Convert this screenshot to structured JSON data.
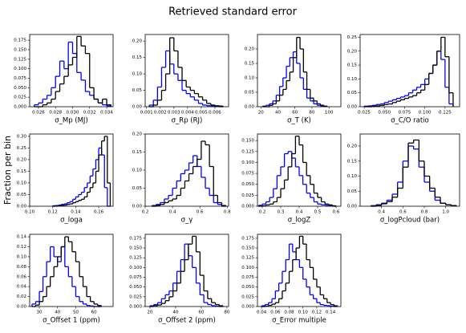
{
  "title": "Retrieved standard error",
  "ylabel": "Fraction per bin",
  "chart_data": [
    {
      "type": "histogram",
      "xlabel": "σ_Mp (MJ)",
      "xlim": [
        0.02497,
        0.03475
      ],
      "ylim": [
        0,
        0.19
      ],
      "xticks": [
        0.026,
        0.028,
        {
          "value": 0.03,
          "label": "0.030"
        },
        0.032,
        0.034
      ],
      "yticks": [
        {
          "value": 0,
          "label": "0.000"
        },
        0.025,
        {
          "value": 0.05,
          "label": "0.050"
        },
        0.075,
        {
          "value": 0.1,
          "label": "0.100"
        },
        0.125,
        {
          "value": 0.15,
          "label": "0.150"
        },
        0.175
      ],
      "bins": [
        0.0255,
        0.026,
        0.0265,
        0.027,
        0.0275,
        0.028,
        0.0285,
        0.029,
        0.0295,
        0.03,
        0.0305,
        0.031,
        0.0315,
        0.032,
        0.0325,
        0.033,
        0.0335,
        0.034,
        0.0345
      ],
      "series": [
        {
          "color": "#0000ff",
          "values": [
            0.005,
            0.01,
            0.02,
            0.03,
            0.05,
            0.08,
            0.12,
            0.1,
            0.17,
            0.14,
            0.09,
            0.07,
            0.04,
            0.03,
            0.02,
            0.01,
            0.005,
            0.002
          ]
        },
        {
          "color": "#000000",
          "values": [
            0,
            0,
            0.005,
            0.01,
            0.02,
            0.04,
            0.06,
            0.08,
            0.11,
            0.13,
            0.185,
            0.16,
            0.14,
            0.05,
            0.02,
            0.01,
            0.02,
            0.005
          ]
        }
      ]
    },
    {
      "type": "histogram",
      "xlabel": "σ_Rp (RJ)",
      "xlim": [
        0.0009,
        0.007
      ],
      "ylim": [
        0,
        0.22
      ],
      "xticks": [
        0.001,
        0.002,
        0.003,
        0.004,
        0.005,
        0.006
      ],
      "yticks": [
        {
          "value": 0,
          "label": "0.00"
        },
        0.05,
        {
          "value": 0.1,
          "label": "0.10"
        },
        0.15,
        {
          "value": 0.2,
          "label": "0.20"
        }
      ],
      "bins": [
        0.0012,
        0.0015,
        0.0018,
        0.0021,
        0.0024,
        0.0027,
        0.003,
        0.0033,
        0.0036,
        0.0039,
        0.0042,
        0.0045,
        0.0048,
        0.0051,
        0.0054,
        0.0057,
        0.006,
        0.0063,
        0.0066
      ],
      "series": [
        {
          "color": "#0000ff",
          "values": [
            0.005,
            0.02,
            0.06,
            0.12,
            0.17,
            0.13,
            0.1,
            0.08,
            0.05,
            0.04,
            0.03,
            0.02,
            0.01,
            0.005,
            0.003,
            0.002,
            0.001,
            0
          ]
        },
        {
          "color": "#000000",
          "values": [
            0,
            0.005,
            0.02,
            0.05,
            0.1,
            0.21,
            0.17,
            0.12,
            0.08,
            0.06,
            0.05,
            0.04,
            0.03,
            0.02,
            0.01,
            0.005,
            0.003,
            0.002
          ]
        }
      ]
    },
    {
      "type": "histogram",
      "xlabel": "σ_T (K)",
      "xlim": [
        16,
        114
      ],
      "ylim": [
        0,
        0.25
      ],
      "xticks": [
        20,
        40,
        60,
        80,
        100
      ],
      "yticks": [
        {
          "value": 0,
          "label": "0.00"
        },
        0.05,
        {
          "value": 0.1,
          "label": "0.10"
        },
        0.15,
        {
          "value": 0.2,
          "label": "0.20"
        }
      ],
      "bins": [
        22,
        26,
        30,
        34,
        38,
        42,
        46,
        50,
        54,
        58,
        62,
        66,
        70,
        74,
        78,
        82,
        86,
        90,
        94,
        98
      ],
      "series": [
        {
          "color": "#0000ff",
          "values": [
            0.002,
            0.005,
            0.01,
            0.02,
            0.04,
            0.07,
            0.1,
            0.14,
            0.17,
            0.19,
            0.15,
            0.1,
            0.06,
            0.03,
            0.02,
            0.01,
            0.005,
            0.002,
            0.001
          ]
        },
        {
          "color": "#000000",
          "values": [
            0,
            0,
            0.005,
            0.01,
            0.02,
            0.04,
            0.06,
            0.09,
            0.12,
            0.17,
            0.24,
            0.2,
            0.12,
            0.06,
            0.03,
            0.02,
            0.01,
            0.005,
            0.002
          ]
        }
      ]
    },
    {
      "type": "histogram",
      "xlabel": "σ_C/O ratio",
      "xlim": [
        0.02,
        0.143
      ],
      "ylim": [
        0,
        0.26
      ],
      "xticks": [
        0.025,
        {
          "value": 0.05,
          "label": "0.050"
        },
        0.075,
        {
          "value": 0.1,
          "label": "0.100"
        },
        0.125
      ],
      "yticks": [
        {
          "value": 0,
          "label": "0.00"
        },
        0.05,
        {
          "value": 0.1,
          "label": "0.10"
        },
        0.15,
        {
          "value": 0.2,
          "label": "0.20"
        },
        0.25
      ],
      "bins": [
        0.025,
        0.03,
        0.035,
        0.04,
        0.045,
        0.05,
        0.055,
        0.06,
        0.065,
        0.07,
        0.075,
        0.08,
        0.085,
        0.09,
        0.095,
        0.1,
        0.105,
        0.11,
        0.115,
        0.12,
        0.125,
        0.13,
        0.135
      ],
      "series": [
        {
          "color": "#0000ff",
          "values": [
            0.002,
            0.003,
            0.005,
            0.008,
            0.01,
            0.015,
            0.02,
            0.025,
            0.03,
            0.035,
            0.04,
            0.05,
            0.06,
            0.07,
            0.08,
            0.1,
            0.12,
            0.15,
            0.2,
            0.17,
            0.07,
            0.01
          ]
        },
        {
          "color": "#000000",
          "values": [
            0,
            0,
            0.002,
            0.003,
            0.005,
            0.008,
            0.01,
            0.015,
            0.02,
            0.025,
            0.03,
            0.035,
            0.04,
            0.05,
            0.06,
            0.08,
            0.12,
            0.15,
            0.2,
            0.25,
            0.18,
            0.05
          ]
        }
      ]
    },
    {
      "type": "histogram",
      "xlabel": "σ_loga",
      "xlim": [
        0.1,
        0.1725
      ],
      "ylim": [
        0,
        0.31
      ],
      "xticks": [
        {
          "value": 0.1,
          "label": "0.10"
        },
        0.12,
        0.14,
        0.16
      ],
      "yticks": [
        {
          "value": 0,
          "label": "0.00"
        },
        0.05,
        {
          "value": 0.1,
          "label": "0.10"
        },
        0.15,
        {
          "value": 0.2,
          "label": "0.20"
        },
        0.25,
        {
          "value": 0.3,
          "label": "0.30"
        }
      ],
      "bins": [
        0.12,
        0.1225,
        0.125,
        0.1275,
        0.13,
        0.1325,
        0.135,
        0.1375,
        0.14,
        0.1425,
        0.145,
        0.1475,
        0.15,
        0.1525,
        0.155,
        0.1575,
        0.16,
        0.1625,
        0.165,
        0.1675,
        0.17
      ],
      "series": [
        {
          "color": "#0000ff",
          "values": [
            0.002,
            0.003,
            0.005,
            0.008,
            0.01,
            0.015,
            0.02,
            0.03,
            0.04,
            0.05,
            0.06,
            0.08,
            0.1,
            0.13,
            0.16,
            0.2,
            0.25,
            0.22,
            0.08,
            0
          ]
        },
        {
          "color": "#000000",
          "values": [
            0,
            0.001,
            0.002,
            0.003,
            0.005,
            0.008,
            0.01,
            0.015,
            0.02,
            0.025,
            0.03,
            0.04,
            0.06,
            0.08,
            0.1,
            0.15,
            0.22,
            0.28,
            0.3,
            0.1
          ]
        }
      ]
    },
    {
      "type": "histogram",
      "xlabel": "σ_γ",
      "xlim": [
        0.2,
        0.81
      ],
      "ylim": [
        0,
        0.2
      ],
      "xticks": [
        0.2,
        0.4,
        0.6,
        0.8
      ],
      "yticks": [
        {
          "value": 0,
          "label": "0.00"
        },
        0.05,
        {
          "value": 0.1,
          "label": "0.10"
        },
        0.15,
        {
          "value": 0.2,
          "label": "0.20"
        }
      ],
      "bins": [
        0.25,
        0.28,
        0.31,
        0.34,
        0.37,
        0.4,
        0.43,
        0.46,
        0.49,
        0.52,
        0.55,
        0.58,
        0.61,
        0.64,
        0.67,
        0.7,
        0.73,
        0.76,
        0.79
      ],
      "series": [
        {
          "color": "#0000ff",
          "values": [
            0.002,
            0.005,
            0.01,
            0.02,
            0.03,
            0.05,
            0.07,
            0.09,
            0.1,
            0.12,
            0.14,
            0.11,
            0.08,
            0.05,
            0.03,
            0.01,
            0.005,
            0
          ]
        },
        {
          "color": "#000000",
          "values": [
            0,
            0.002,
            0.005,
            0.01,
            0.015,
            0.02,
            0.03,
            0.05,
            0.07,
            0.09,
            0.11,
            0.13,
            0.18,
            0.17,
            0.11,
            0.03,
            0.01,
            0.002
          ]
        }
      ]
    },
    {
      "type": "histogram",
      "xlabel": "σ_logZ",
      "xlim": [
        0.174,
        0.626
      ],
      "ylim": [
        0,
        0.165
      ],
      "xticks": [
        0.2,
        0.3,
        0.4,
        0.5,
        0.6
      ],
      "yticks": [
        {
          "value": 0,
          "label": "0.000"
        },
        0.025,
        {
          "value": 0.05,
          "label": "0.050"
        },
        0.075,
        {
          "value": 0.1,
          "label": "0.100"
        },
        0.125,
        {
          "value": 0.15,
          "label": "0.150"
        }
      ],
      "bins": [
        0.18,
        0.2,
        0.22,
        0.24,
        0.26,
        0.28,
        0.3,
        0.32,
        0.34,
        0.36,
        0.38,
        0.4,
        0.42,
        0.44,
        0.46,
        0.48,
        0.5,
        0.52,
        0.54,
        0.56,
        0.58,
        0.6
      ],
      "series": [
        {
          "color": "#0000ff",
          "values": [
            0.002,
            0.005,
            0.01,
            0.02,
            0.04,
            0.07,
            0.09,
            0.12,
            0.125,
            0.11,
            0.09,
            0.07,
            0.05,
            0.03,
            0.02,
            0.01,
            0.005,
            0.003,
            0.002,
            0.001,
            0
          ]
        },
        {
          "color": "#000000",
          "values": [
            0,
            0.001,
            0.003,
            0.005,
            0.01,
            0.02,
            0.04,
            0.06,
            0.09,
            0.12,
            0.16,
            0.14,
            0.1,
            0.07,
            0.05,
            0.03,
            0.02,
            0.01,
            0.005,
            0.003,
            0.001
          ]
        }
      ]
    },
    {
      "type": "histogram",
      "xlabel": "σ_logPcloud (bar)",
      "xlim": [
        0.2,
        1.13
      ],
      "ylim": [
        0,
        0.24
      ],
      "xticks": [
        0.4,
        0.6,
        0.8,
        {
          "value": 1,
          "label": "1.0"
        }
      ],
      "yticks": [
        {
          "value": 0,
          "label": "0.00"
        },
        0.05,
        {
          "value": 0.1,
          "label": "0.10"
        },
        0.15,
        {
          "value": 0.2,
          "label": "0.20"
        }
      ],
      "bins": [
        0.3,
        0.35,
        0.4,
        0.45,
        0.5,
        0.55,
        0.6,
        0.65,
        0.7,
        0.75,
        0.8,
        0.85,
        0.9,
        0.95,
        1,
        1.05,
        1.1
      ],
      "series": [
        {
          "color": "#0000ff",
          "values": [
            0.002,
            0.005,
            0.01,
            0.02,
            0.04,
            0.08,
            0.15,
            0.2,
            0.19,
            0.13,
            0.08,
            0.05,
            0.02,
            0.01,
            0.005,
            0.002
          ]
        },
        {
          "color": "#000000",
          "values": [
            0,
            0.003,
            0.008,
            0.015,
            0.03,
            0.06,
            0.13,
            0.21,
            0.22,
            0.15,
            0.1,
            0.06,
            0.03,
            0.01,
            0.005,
            0.002
          ]
        }
      ]
    },
    {
      "type": "histogram",
      "xlabel": "σ_Offset 1 (ppm)",
      "xlim": [
        24.7,
        70.5
      ],
      "ylim": [
        0,
        0.145
      ],
      "xticks": [
        30,
        40,
        50,
        60
      ],
      "yticks": [
        {
          "value": 0,
          "label": "0.00"
        },
        0.02,
        0.04,
        0.06,
        0.08,
        {
          "value": 0.1,
          "label": "0.10"
        },
        0.12,
        0.14
      ],
      "bins": [
        26,
        28,
        30,
        32,
        34,
        36,
        38,
        40,
        42,
        44,
        46,
        48,
        50,
        52,
        54,
        56,
        58,
        60,
        62,
        64
      ],
      "series": [
        {
          "color": "#0000ff",
          "values": [
            0.005,
            0.01,
            0.03,
            0.06,
            0.09,
            0.12,
            0.1,
            0.09,
            0.12,
            0.08,
            0.06,
            0.04,
            0.02,
            0.01,
            0.005,
            0.002,
            0.001,
            0,
            0
          ]
        },
        {
          "color": "#000000",
          "values": [
            0,
            0.003,
            0.01,
            0.02,
            0.04,
            0.06,
            0.08,
            0.1,
            0.12,
            0.14,
            0.13,
            0.11,
            0.09,
            0.06,
            0.04,
            0.02,
            0.01,
            0.005,
            0.002
          ]
        }
      ]
    },
    {
      "type": "histogram",
      "xlabel": "σ_Offset 2 (ppm)",
      "xlim": [
        16.3,
        81.3
      ],
      "ylim": [
        0,
        0.185
      ],
      "xticks": [
        20,
        40,
        60,
        80
      ],
      "yticks": [
        {
          "value": 0,
          "label": "0.000"
        },
        0.025,
        {
          "value": 0.05,
          "label": "0.050"
        },
        0.075,
        {
          "value": 0.1,
          "label": "0.100"
        },
        0.125,
        {
          "value": 0.15,
          "label": "0.150"
        },
        0.175
      ],
      "bins": [
        20,
        23,
        26,
        29,
        32,
        35,
        38,
        41,
        44,
        47,
        50,
        53,
        56,
        59,
        62,
        65,
        68,
        71,
        74,
        77
      ],
      "series": [
        {
          "color": "#0000ff",
          "values": [
            0.002,
            0.005,
            0.01,
            0.02,
            0.03,
            0.04,
            0.06,
            0.09,
            0.12,
            0.16,
            0.13,
            0.1,
            0.06,
            0.03,
            0.01,
            0.005,
            0.002,
            0.001,
            0
          ]
        },
        {
          "color": "#000000",
          "values": [
            0,
            0.002,
            0.004,
            0.008,
            0.015,
            0.025,
            0.04,
            0.06,
            0.09,
            0.12,
            0.16,
            0.18,
            0.14,
            0.08,
            0.04,
            0.02,
            0.01,
            0.005,
            0.002
          ]
        }
      ]
    },
    {
      "type": "histogram",
      "xlabel": "σ_Error multiple",
      "xlim": [
        0.034,
        0.155
      ],
      "ylim": [
        0,
        0.185
      ],
      "xticks": [
        0.04,
        0.06,
        0.08,
        {
          "value": 0.1,
          "label": "0.10"
        },
        0.12,
        0.14
      ],
      "yticks": [
        {
          "value": 0,
          "label": "0.000"
        },
        0.025,
        {
          "value": 0.05,
          "label": "0.050"
        },
        0.075,
        {
          "value": 0.1,
          "label": "0.100"
        },
        0.125,
        {
          "value": 0.15,
          "label": "0.150"
        },
        0.175
      ],
      "bins": [
        0.04,
        0.045,
        0.05,
        0.055,
        0.06,
        0.065,
        0.07,
        0.075,
        0.08,
        0.085,
        0.09,
        0.095,
        0.1,
        0.105,
        0.11,
        0.115,
        0.12,
        0.125,
        0.13,
        0.135,
        0.14,
        0.145,
        0.15
      ],
      "series": [
        {
          "color": "#0000ff",
          "values": [
            0.002,
            0.005,
            0.01,
            0.02,
            0.04,
            0.06,
            0.09,
            0.12,
            0.16,
            0.14,
            0.12,
            0.1,
            0.07,
            0.05,
            0.03,
            0.02,
            0.01,
            0.005,
            0.003,
            0.002,
            0.001,
            0
          ]
        },
        {
          "color": "#000000",
          "values": [
            0,
            0.001,
            0.003,
            0.006,
            0.01,
            0.02,
            0.04,
            0.06,
            0.09,
            0.12,
            0.15,
            0.18,
            0.16,
            0.12,
            0.1,
            0.07,
            0.05,
            0.03,
            0.02,
            0.01,
            0.005,
            0.002
          ]
        }
      ]
    }
  ]
}
